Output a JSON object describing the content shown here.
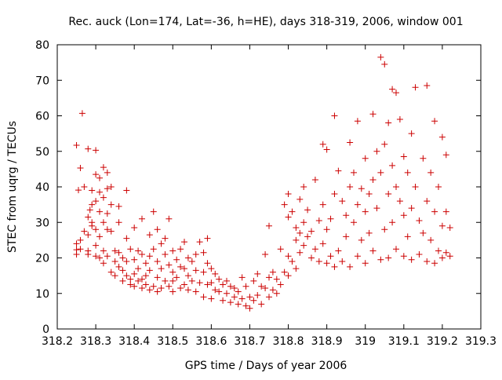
{
  "chart_data": {
    "type": "scatter",
    "title": "Rec. auck (Lon=174, Lat=-36, h=HE), days 318-319, 2006, window 001",
    "xlabel": "GPS time / Days of year 2006",
    "ylabel": "STEC from uqrg / TECUs",
    "xlim": [
      318.2,
      319.3
    ],
    "ylim": [
      0,
      80
    ],
    "x_ticks": [
      318.2,
      318.3,
      318.4,
      318.5,
      318.6,
      318.7,
      318.8,
      318.9,
      319.0,
      319.1,
      319.2,
      319.3
    ],
    "x_tick_labels": [
      "318.2",
      "318.3",
      "318.4",
      "318.5",
      "318.6",
      "318.7",
      "318.8",
      "318.9",
      "319",
      "319.1",
      "319.2",
      "319.3"
    ],
    "y_ticks": [
      0,
      10,
      20,
      30,
      40,
      50,
      60,
      70,
      80
    ],
    "y_tick_labels": [
      "0",
      "10",
      "20",
      "30",
      "40",
      "50",
      "60",
      "70",
      "80"
    ],
    "grid": false,
    "legend": "none",
    "marker": "plus",
    "color": "#cc0000",
    "series": [
      {
        "points": [
          [
            318.25,
            51.7
          ],
          [
            318.26,
            45.3
          ],
          [
            318.265,
            60.7
          ],
          [
            318.255,
            39.1
          ],
          [
            318.25,
            24.0
          ],
          [
            318.25,
            22.3
          ],
          [
            318.25,
            21.0
          ],
          [
            318.26,
            25.0
          ],
          [
            318.26,
            22.5
          ],
          [
            318.27,
            27.5
          ],
          [
            318.27,
            40.0
          ],
          [
            318.28,
            50.7
          ],
          [
            318.28,
            31.5
          ],
          [
            318.28,
            26.5
          ],
          [
            318.28,
            22.0
          ],
          [
            318.28,
            21.0
          ],
          [
            318.285,
            33.5
          ],
          [
            318.29,
            39.0
          ],
          [
            318.29,
            35.0
          ],
          [
            318.29,
            30.0
          ],
          [
            318.29,
            29.0
          ],
          [
            318.3,
            50.3
          ],
          [
            318.3,
            43.5
          ],
          [
            318.3,
            36.0
          ],
          [
            318.3,
            28.0
          ],
          [
            318.3,
            23.5
          ],
          [
            318.3,
            20.5
          ],
          [
            318.31,
            42.5
          ],
          [
            318.31,
            38.5
          ],
          [
            318.31,
            33.0
          ],
          [
            318.31,
            26.0
          ],
          [
            318.31,
            20.0
          ],
          [
            318.32,
            45.5
          ],
          [
            318.32,
            37.0
          ],
          [
            318.32,
            30.0
          ],
          [
            318.32,
            22.0
          ],
          [
            318.32,
            18.5
          ],
          [
            318.33,
            44.0
          ],
          [
            318.33,
            39.5
          ],
          [
            318.33,
            32.5
          ],
          [
            318.33,
            28.0
          ],
          [
            318.33,
            20.5
          ],
          [
            318.34,
            40.0
          ],
          [
            318.34,
            35.0
          ],
          [
            318.34,
            27.5
          ],
          [
            318.34,
            16.0
          ],
          [
            318.35,
            22.0
          ],
          [
            318.35,
            19.0
          ],
          [
            318.35,
            15.0
          ],
          [
            318.36,
            34.5
          ],
          [
            318.36,
            30.0
          ],
          [
            318.36,
            21.5
          ],
          [
            318.36,
            17.5
          ],
          [
            318.37,
            20.0
          ],
          [
            318.37,
            16.5
          ],
          [
            318.37,
            13.5
          ],
          [
            318.38,
            39.0
          ],
          [
            318.38,
            25.5
          ],
          [
            318.38,
            19.0
          ],
          [
            318.38,
            15.0
          ],
          [
            318.39,
            22.5
          ],
          [
            318.39,
            14.0
          ],
          [
            318.39,
            12.5
          ],
          [
            318.4,
            28.5
          ],
          [
            318.4,
            19.5
          ],
          [
            318.4,
            15.5
          ],
          [
            318.4,
            12.0
          ],
          [
            318.41,
            22.0
          ],
          [
            318.41,
            17.0
          ],
          [
            318.41,
            13.5
          ],
          [
            318.42,
            31.0
          ],
          [
            318.42,
            21.0
          ],
          [
            318.42,
            14.0
          ],
          [
            318.42,
            11.5
          ],
          [
            318.43,
            18.5
          ],
          [
            318.43,
            15.0
          ],
          [
            318.43,
            12.5
          ],
          [
            318.44,
            26.5
          ],
          [
            318.44,
            20.5
          ],
          [
            318.44,
            16.5
          ],
          [
            318.44,
            11.0
          ],
          [
            318.45,
            33.0
          ],
          [
            318.45,
            22.5
          ],
          [
            318.45,
            12.0
          ],
          [
            318.46,
            28.0
          ],
          [
            318.46,
            19.0
          ],
          [
            318.46,
            14.5
          ],
          [
            318.46,
            10.5
          ],
          [
            318.47,
            24.0
          ],
          [
            318.47,
            17.0
          ],
          [
            318.47,
            11.5
          ],
          [
            318.48,
            25.5
          ],
          [
            318.48,
            21.0
          ],
          [
            318.48,
            13.5
          ],
          [
            318.49,
            31.0
          ],
          [
            318.49,
            18.0
          ],
          [
            318.49,
            12.0
          ],
          [
            318.5,
            22.0
          ],
          [
            318.5,
            16.0
          ],
          [
            318.5,
            13.5
          ],
          [
            318.5,
            10.5
          ],
          [
            318.51,
            19.5
          ],
          [
            318.51,
            14.5
          ],
          [
            318.52,
            22.5
          ],
          [
            318.52,
            17.5
          ],
          [
            318.52,
            11.5
          ],
          [
            318.53,
            24.5
          ],
          [
            318.53,
            17.0
          ],
          [
            318.53,
            12.5
          ],
          [
            318.54,
            20.0
          ],
          [
            318.54,
            15.0
          ],
          [
            318.54,
            11.0
          ],
          [
            318.55,
            19.0
          ],
          [
            318.55,
            13.5
          ],
          [
            318.56,
            21.0
          ],
          [
            318.56,
            16.5
          ],
          [
            318.56,
            10.5
          ],
          [
            318.57,
            24.5
          ],
          [
            318.57,
            13.0
          ],
          [
            318.58,
            21.5
          ],
          [
            318.58,
            16.0
          ],
          [
            318.58,
            9.0
          ],
          [
            318.59,
            25.5
          ],
          [
            318.59,
            18.5
          ],
          [
            318.59,
            12.5
          ],
          [
            318.6,
            17.0
          ],
          [
            318.6,
            13.0
          ],
          [
            318.6,
            8.5
          ],
          [
            318.61,
            15.5
          ],
          [
            318.61,
            11.0
          ],
          [
            318.62,
            14.0
          ],
          [
            318.62,
            10.5
          ],
          [
            318.63,
            12.5
          ],
          [
            318.63,
            8.0
          ],
          [
            318.64,
            13.5
          ],
          [
            318.64,
            10.0
          ],
          [
            318.65,
            12.0
          ],
          [
            318.65,
            7.5
          ],
          [
            318.66,
            11.5
          ],
          [
            318.66,
            9.0
          ],
          [
            318.67,
            10.5
          ],
          [
            318.67,
            7.0
          ],
          [
            318.68,
            14.5
          ],
          [
            318.68,
            8.5
          ],
          [
            318.69,
            12.0
          ],
          [
            318.69,
            6.5
          ],
          [
            318.7,
            9.0
          ],
          [
            318.7,
            5.8
          ],
          [
            318.71,
            13.5
          ],
          [
            318.71,
            8.0
          ],
          [
            318.72,
            15.5
          ],
          [
            318.72,
            9.5
          ],
          [
            318.73,
            12.0
          ],
          [
            318.73,
            7.0
          ],
          [
            318.74,
            21.0
          ],
          [
            318.74,
            11.5
          ],
          [
            318.75,
            29.0
          ],
          [
            318.75,
            14.5
          ],
          [
            318.75,
            9.0
          ],
          [
            318.76,
            16.0
          ],
          [
            318.76,
            11.0
          ],
          [
            318.77,
            14.0
          ],
          [
            318.77,
            10.0
          ],
          [
            318.78,
            22.5
          ],
          [
            318.78,
            12.5
          ],
          [
            318.79,
            35.0
          ],
          [
            318.79,
            16.0
          ],
          [
            318.8,
            38.0
          ],
          [
            318.8,
            31.5
          ],
          [
            318.8,
            20.5
          ],
          [
            318.8,
            15.0
          ],
          [
            318.81,
            33.0
          ],
          [
            318.81,
            19.0
          ],
          [
            318.82,
            28.5
          ],
          [
            318.82,
            25.0
          ],
          [
            318.82,
            17.0
          ],
          [
            318.83,
            36.5
          ],
          [
            318.83,
            27.0
          ],
          [
            318.83,
            21.5
          ],
          [
            318.84,
            40.0
          ],
          [
            318.84,
            30.0
          ],
          [
            318.84,
            23.5
          ],
          [
            318.85,
            33.5
          ],
          [
            318.85,
            26.0
          ],
          [
            318.86,
            27.5
          ],
          [
            318.86,
            20.0
          ],
          [
            318.87,
            42.0
          ],
          [
            318.87,
            22.5
          ],
          [
            318.88,
            30.5
          ],
          [
            318.88,
            19.0
          ],
          [
            318.89,
            52.0
          ],
          [
            318.89,
            35.0
          ],
          [
            318.89,
            24.0
          ],
          [
            318.9,
            50.5
          ],
          [
            318.9,
            28.0
          ],
          [
            318.9,
            18.5
          ],
          [
            318.91,
            31.0
          ],
          [
            318.91,
            20.5
          ],
          [
            318.92,
            60.0
          ],
          [
            318.92,
            38.0
          ],
          [
            318.92,
            17.5
          ],
          [
            318.93,
            44.5
          ],
          [
            318.93,
            22.0
          ],
          [
            318.94,
            36.0
          ],
          [
            318.94,
            19.0
          ],
          [
            318.95,
            32.0
          ],
          [
            318.95,
            26.0
          ],
          [
            318.96,
            52.5
          ],
          [
            318.96,
            40.0
          ],
          [
            318.96,
            17.5
          ],
          [
            318.97,
            44.0
          ],
          [
            318.97,
            30.0
          ],
          [
            318.98,
            58.5
          ],
          [
            318.98,
            35.0
          ],
          [
            318.98,
            20.5
          ],
          [
            318.99,
            39.5
          ],
          [
            318.99,
            25.0
          ],
          [
            319.0,
            48.0
          ],
          [
            319.0,
            33.0
          ],
          [
            319.0,
            18.5
          ],
          [
            319.01,
            38.0
          ],
          [
            319.01,
            27.0
          ],
          [
            319.02,
            60.5
          ],
          [
            319.02,
            42.0
          ],
          [
            319.02,
            22.0
          ],
          [
            319.03,
            50.0
          ],
          [
            319.03,
            34.0
          ],
          [
            319.04,
            76.5
          ],
          [
            319.04,
            44.0
          ],
          [
            319.04,
            19.5
          ],
          [
            319.05,
            74.5
          ],
          [
            319.05,
            52.0
          ],
          [
            319.05,
            28.0
          ],
          [
            319.06,
            58.0
          ],
          [
            319.06,
            38.0
          ],
          [
            319.06,
            20.0
          ],
          [
            319.07,
            67.5
          ],
          [
            319.07,
            46.0
          ],
          [
            319.07,
            30.0
          ],
          [
            319.08,
            66.5
          ],
          [
            319.08,
            40.0
          ],
          [
            319.08,
            22.5
          ],
          [
            319.09,
            59.0
          ],
          [
            319.09,
            36.0
          ],
          [
            319.1,
            48.5
          ],
          [
            319.1,
            32.0
          ],
          [
            319.1,
            20.5
          ],
          [
            319.11,
            44.0
          ],
          [
            319.11,
            26.0
          ],
          [
            319.12,
            55.0
          ],
          [
            319.12,
            34.0
          ],
          [
            319.12,
            19.5
          ],
          [
            319.13,
            68.0
          ],
          [
            319.13,
            40.0
          ],
          [
            319.14,
            30.5
          ],
          [
            319.14,
            21.0
          ],
          [
            319.15,
            48.0
          ],
          [
            319.15,
            27.0
          ],
          [
            319.16,
            68.5
          ],
          [
            319.16,
            36.0
          ],
          [
            319.16,
            19.0
          ],
          [
            319.17,
            44.0
          ],
          [
            319.17,
            25.0
          ],
          [
            319.18,
            58.5
          ],
          [
            319.18,
            33.0
          ],
          [
            319.18,
            18.5
          ],
          [
            319.19,
            40.0
          ],
          [
            319.19,
            22.0
          ],
          [
            319.2,
            54.0
          ],
          [
            319.2,
            29.0
          ],
          [
            319.2,
            20.0
          ],
          [
            319.21,
            49.0
          ],
          [
            319.21,
            33.0
          ],
          [
            319.21,
            21.5
          ],
          [
            319.22,
            28.5
          ],
          [
            319.22,
            20.5
          ]
        ]
      }
    ]
  }
}
